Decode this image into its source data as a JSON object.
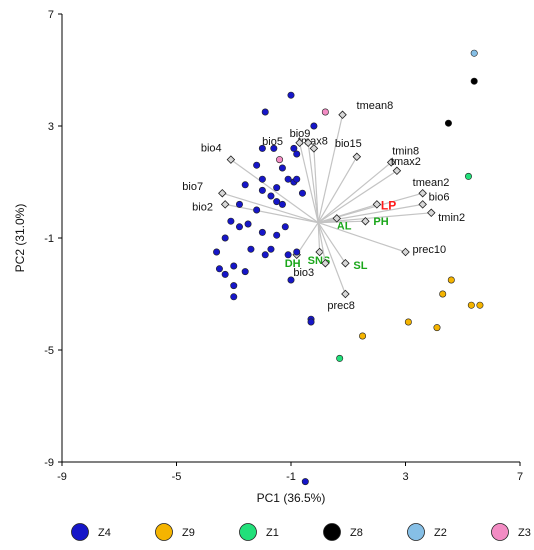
{
  "chart_data": {
    "type": "scatter",
    "title": "",
    "xlabel": "PC1 (36.5%)",
    "ylabel": "PC2 (31.0%)",
    "xlim": [
      -9,
      7
    ],
    "ylim": [
      -9,
      7
    ],
    "x_ticks": [
      "-9",
      "-5",
      "-1",
      "3",
      "7"
    ],
    "y_ticks": [
      "-9",
      "-5",
      "-1",
      "3",
      "7"
    ],
    "grid": false,
    "legend_position": "bottom",
    "colors": {
      "Z4": "#1616c8",
      "Z9": "#f5b400",
      "Z1": "#22e07a",
      "Z8": "#000000",
      "Z2": "#86bfe6",
      "Z3": "#f38cc4",
      "loading_line": "#c4c4c4",
      "label_green": "#1aa61a",
      "label_red": "#ff1a1a"
    },
    "legend": [
      "Z4",
      "Z9",
      "Z1",
      "Z8",
      "Z2",
      "Z3"
    ],
    "series": [
      {
        "name": "Z4",
        "points": [
          [
            -1.0,
            4.1
          ],
          [
            -1.9,
            3.5
          ],
          [
            -0.2,
            3.0
          ],
          [
            -0.9,
            2.2
          ],
          [
            -2.2,
            1.6
          ],
          [
            -2.6,
            0.9
          ],
          [
            -2.0,
            1.1
          ],
          [
            -2.0,
            0.7
          ],
          [
            -1.7,
            0.5
          ],
          [
            -1.5,
            0.8
          ],
          [
            -0.8,
            2.0
          ],
          [
            -2.0,
            2.2
          ],
          [
            -1.6,
            2.2
          ],
          [
            -0.9,
            1.0
          ],
          [
            -1.3,
            1.5
          ],
          [
            -1.1,
            1.1
          ],
          [
            -0.8,
            1.1
          ],
          [
            -0.6,
            0.6
          ],
          [
            -1.5,
            0.3
          ],
          [
            -1.3,
            0.2
          ],
          [
            -2.2,
            0.0
          ],
          [
            -2.8,
            0.2
          ],
          [
            -3.1,
            -0.4
          ],
          [
            -3.3,
            -1.0
          ],
          [
            -2.5,
            -0.5
          ],
          [
            -2.4,
            -1.4
          ],
          [
            -1.7,
            -1.4
          ],
          [
            -1.9,
            -1.6
          ],
          [
            -2.0,
            -0.8
          ],
          [
            -1.2,
            -0.6
          ],
          [
            -1.5,
            -0.9
          ],
          [
            -1.1,
            -1.6
          ],
          [
            -1.0,
            -2.5
          ],
          [
            -3.6,
            -1.5
          ],
          [
            -3.0,
            -2.0
          ],
          [
            -3.3,
            -2.3
          ],
          [
            -3.5,
            -2.1
          ],
          [
            -2.6,
            -2.2
          ],
          [
            -3.0,
            -2.7
          ],
          [
            -3.0,
            -3.1
          ],
          [
            -0.3,
            -3.9
          ],
          [
            -0.3,
            -4.0
          ],
          [
            -0.5,
            -9.7
          ],
          [
            -0.8,
            -1.5
          ],
          [
            -2.8,
            -0.6
          ]
        ]
      },
      {
        "name": "Z9",
        "points": [
          [
            4.6,
            -2.5
          ],
          [
            4.3,
            -3.0
          ],
          [
            5.3,
            -3.4
          ],
          [
            5.6,
            -3.4
          ],
          [
            3.1,
            -4.0
          ],
          [
            4.1,
            -4.2
          ],
          [
            1.5,
            -4.5
          ]
        ]
      },
      {
        "name": "Z1",
        "points": [
          [
            5.2,
            1.2
          ],
          [
            0.7,
            -5.3
          ]
        ]
      },
      {
        "name": "Z8",
        "points": [
          [
            5.4,
            4.6
          ],
          [
            4.5,
            3.1
          ]
        ]
      },
      {
        "name": "Z2",
        "points": [
          [
            5.4,
            5.6
          ]
        ]
      },
      {
        "name": "Z3",
        "points": [
          [
            0.2,
            3.5
          ],
          [
            -1.4,
            1.8
          ]
        ]
      }
    ],
    "loadings": {
      "origin": [
        -0.05,
        -0.45
      ],
      "vectors": [
        {
          "label": "tmean8",
          "x": 0.8,
          "y": 3.4,
          "style": "black"
        },
        {
          "label": "tmax8",
          "x": -0.2,
          "y": 2.2,
          "style": "black"
        },
        {
          "label": "bio9",
          "x": -0.7,
          "y": 2.4,
          "style": "black"
        },
        {
          "label": "bio5",
          "x": -0.4,
          "y": 2.4,
          "style": "black"
        },
        {
          "label": "bio15",
          "x": 1.3,
          "y": 1.9,
          "style": "black"
        },
        {
          "label": "tmin8",
          "x": 2.5,
          "y": 1.7,
          "style": "black"
        },
        {
          "label": "tmax2",
          "x": 2.7,
          "y": 1.4,
          "style": "black"
        },
        {
          "label": "bio4",
          "x": -3.1,
          "y": 1.8,
          "style": "black"
        },
        {
          "label": "bio7",
          "x": -3.4,
          "y": 0.6,
          "style": "black"
        },
        {
          "label": "bio2",
          "x": -3.3,
          "y": 0.2,
          "style": "black"
        },
        {
          "label": "tmean2",
          "x": 3.6,
          "y": 0.6,
          "style": "black"
        },
        {
          "label": "bio6",
          "x": 3.6,
          "y": 0.2,
          "style": "black"
        },
        {
          "label": "tmin2",
          "x": 3.9,
          "y": -0.1,
          "style": "black"
        },
        {
          "label": "LP",
          "x": 2.0,
          "y": 0.2,
          "style": "red"
        },
        {
          "label": "PH",
          "x": 1.6,
          "y": -0.4,
          "style": "green"
        },
        {
          "label": "AL",
          "x": 0.6,
          "y": -0.3,
          "style": "green"
        },
        {
          "label": "prec10",
          "x": 3.0,
          "y": -1.5,
          "style": "black"
        },
        {
          "label": "DH",
          "x": -0.8,
          "y": -1.6,
          "style": "green"
        },
        {
          "label": "SNS",
          "x": 0.0,
          "y": -1.5,
          "style": "green"
        },
        {
          "label": "bio3",
          "x": 0.2,
          "y": -1.9,
          "style": "black"
        },
        {
          "label": "SL",
          "x": 0.9,
          "y": -1.9,
          "style": "green"
        },
        {
          "label": "prec8",
          "x": 0.9,
          "y": -3.0,
          "style": "black"
        }
      ]
    }
  }
}
